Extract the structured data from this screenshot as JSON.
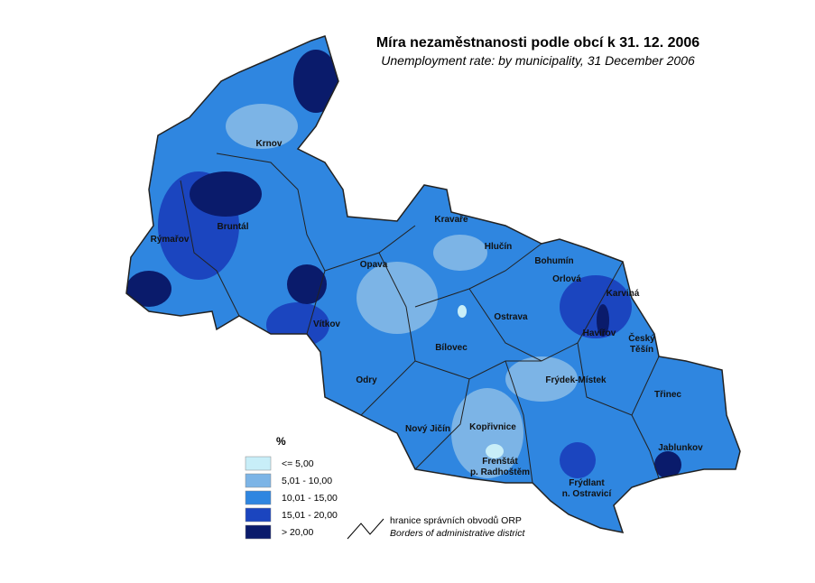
{
  "header": {
    "title": "Míra nezaměstnanosti podle obcí k 31. 12. 2006",
    "subtitle": "Unemployment rate: by  municipality, 31 December 2006"
  },
  "districts": [
    [
      "Krnov"
    ],
    [
      "Bruntál"
    ],
    [
      "Rýmařov"
    ],
    [
      "Opava"
    ],
    [
      "Vítkov"
    ],
    [
      "Kravaře"
    ],
    [
      "Hlučín"
    ],
    [
      "Bohumín"
    ],
    [
      "Orlová"
    ],
    [
      "Karviná"
    ],
    [
      "Ostrava"
    ],
    [
      "Havířov"
    ],
    [
      "Český",
      "Těšín"
    ],
    [
      "Bílovec"
    ],
    [
      "Frýdek-Místek"
    ],
    [
      "Třinec"
    ],
    [
      "Odry"
    ],
    [
      "Nový Jičín"
    ],
    [
      "Kopřivnice"
    ],
    [
      "Frenštát",
      "p. Radhoštěm"
    ],
    [
      "Frýdlant",
      "n. Ostravicí"
    ],
    [
      "Jablunkov"
    ]
  ],
  "legend": {
    "title": "%",
    "items": [
      {
        "label": "<=  5,00",
        "color": "#c8eef8"
      },
      {
        "label": "5,01 - 10,00",
        "color": "#7cb4e6"
      },
      {
        "label": "10,01 - 15,00",
        "color": "#2f86e0"
      },
      {
        "label": "15,01 - 20,00",
        "color": "#1b45bf"
      },
      {
        "label": "> 20,00",
        "color": "#0a1b6b"
      }
    ],
    "border": {
      "label": "hranice  správních obvodů ORP",
      "label_en": "Borders of administrative district"
    }
  }
}
